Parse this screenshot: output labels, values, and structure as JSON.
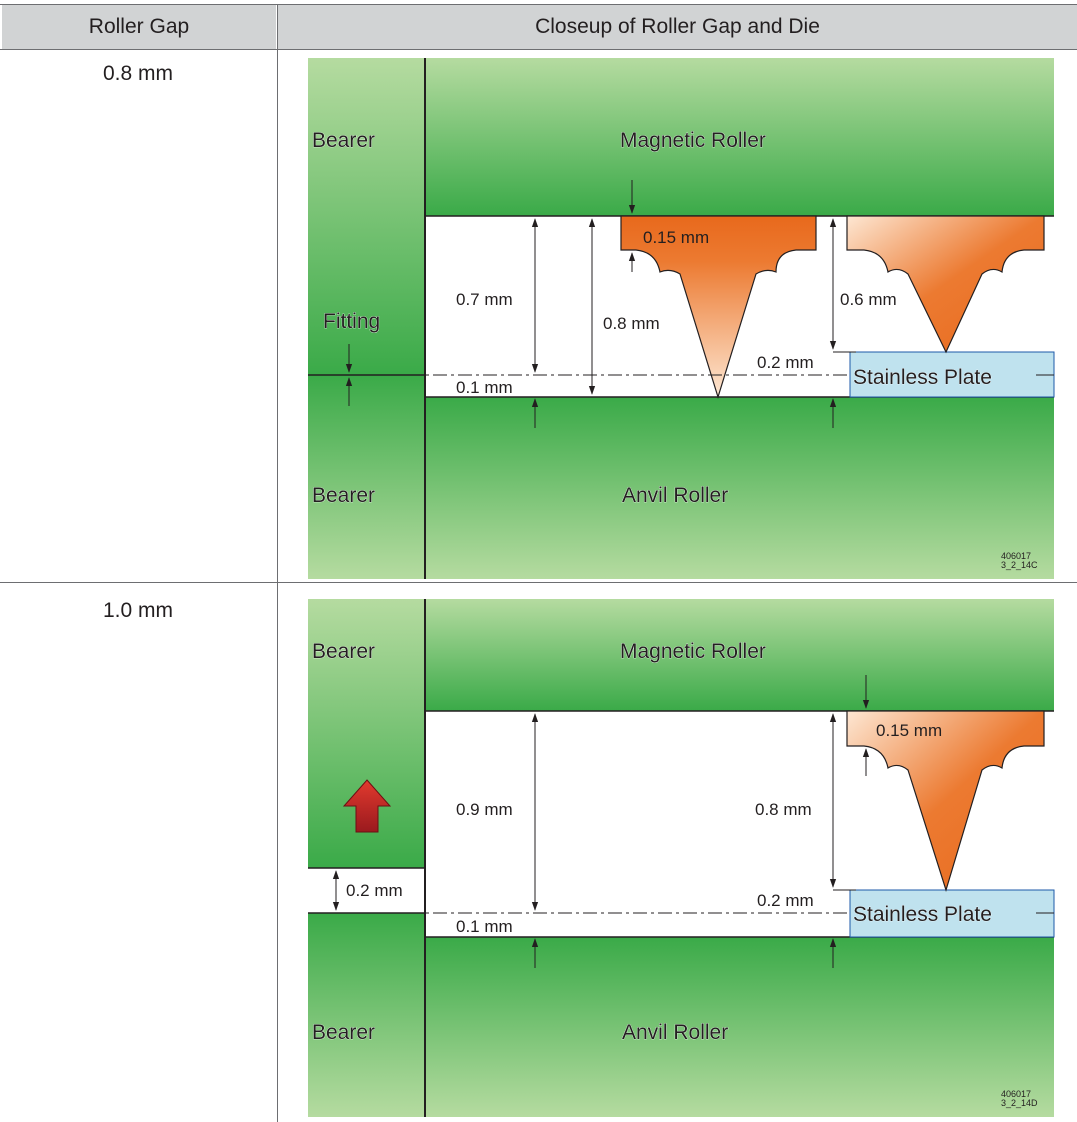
{
  "table": {
    "headers": [
      "Roller Gap",
      "Closeup of Roller Gap and Die"
    ],
    "rows": [
      {
        "gap": "0.8 mm",
        "diagram": {
          "bearer_top": "Bearer",
          "bearer_bottom": "Bearer",
          "fitting": "Fitting",
          "magnetic_roller": "Magnetic Roller",
          "anvil_roller": "Anvil Roller",
          "stainless_plate": "Stainless Plate",
          "dims": {
            "blade_height": "0.15 mm",
            "gap_07": "0.7 mm",
            "gap_08": "0.8 mm",
            "gap_06": "0.6 mm",
            "plate": "0.2 mm",
            "offset": "0.1 mm"
          },
          "code_line1": "406017",
          "code_line2": "3_2_14C"
        }
      },
      {
        "gap": "1.0 mm",
        "diagram": {
          "bearer_top": "Bearer",
          "bearer_bottom": "Bearer",
          "magnetic_roller": "Magnetic Roller",
          "anvil_roller": "Anvil Roller",
          "stainless_plate": "Stainless Plate",
          "dims": {
            "blade_height": "0.15 mm",
            "gap_09": "0.9 mm",
            "gap_08": "0.8 mm",
            "bearer_gap": "0.2 mm",
            "plate": "0.2 mm",
            "offset": "0.1 mm"
          },
          "code_line1": "406017",
          "code_line2": "3_2_14D"
        }
      }
    ]
  },
  "colors": {
    "roller_dark": "#3aaa48",
    "roller_light": "#b5dba0",
    "blade_orange": "#e8691c",
    "blade_light": "#fde7d3",
    "plate_blue": "#bfe2ee",
    "arrow_red": "#b51c23",
    "header_gray": "#d1d3d4"
  }
}
